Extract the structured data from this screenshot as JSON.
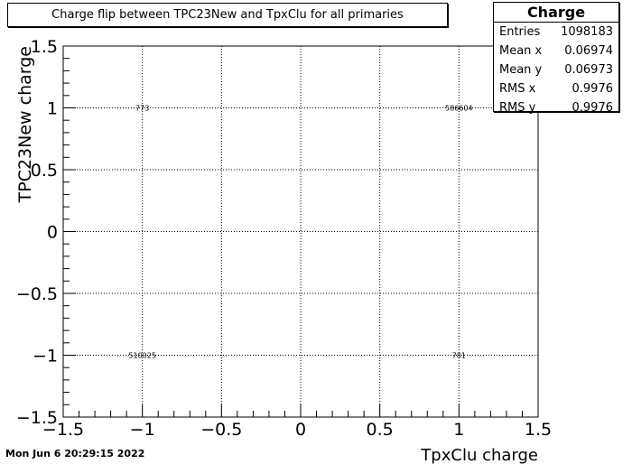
{
  "chart_data": {
    "type": "heatmap",
    "title": "Charge flip between TPC23New and TpxClu for all primaries",
    "xlabel": "TpxClu charge",
    "ylabel": "TPC23New charge",
    "xlim": [
      -1.5,
      1.5
    ],
    "ylim": [
      -1.5,
      1.5
    ],
    "grid": true,
    "x_ticks": [
      -1.5,
      -1,
      -0.5,
      0,
      0.5,
      1,
      1.5
    ],
    "y_ticks": [
      -1.5,
      -1,
      -0.5,
      0,
      0.5,
      1,
      1.5
    ],
    "x_tick_labels": [
      "−1.5",
      "−1",
      "−0.5",
      "0",
      "0.5",
      "1",
      "1.5"
    ],
    "y_tick_labels": [
      "−1.5",
      "−1",
      "−0.5",
      "0",
      "0.5",
      "1",
      "1.5"
    ],
    "cells": [
      {
        "x": -1,
        "y": 1,
        "value": 773,
        "label": "773"
      },
      {
        "x": 1,
        "y": 1,
        "value": 586604,
        "label": "586604"
      },
      {
        "x": -1,
        "y": -1,
        "value": 510025,
        "label": "510025"
      },
      {
        "x": 1,
        "y": -1,
        "value": 781,
        "label": "781"
      }
    ]
  },
  "stats_box": {
    "title": "Charge",
    "rows": [
      {
        "label": "Entries",
        "value": "1098183"
      },
      {
        "label": "Mean x",
        "value": "0.06974"
      },
      {
        "label": "Mean y",
        "value": "0.06973"
      },
      {
        "label": "RMS x",
        "value": "0.9976"
      },
      {
        "label": "RMS y",
        "value": "0.9976"
      }
    ]
  },
  "footer": {
    "date": "Mon Jun  6 20:29:15 2022"
  }
}
